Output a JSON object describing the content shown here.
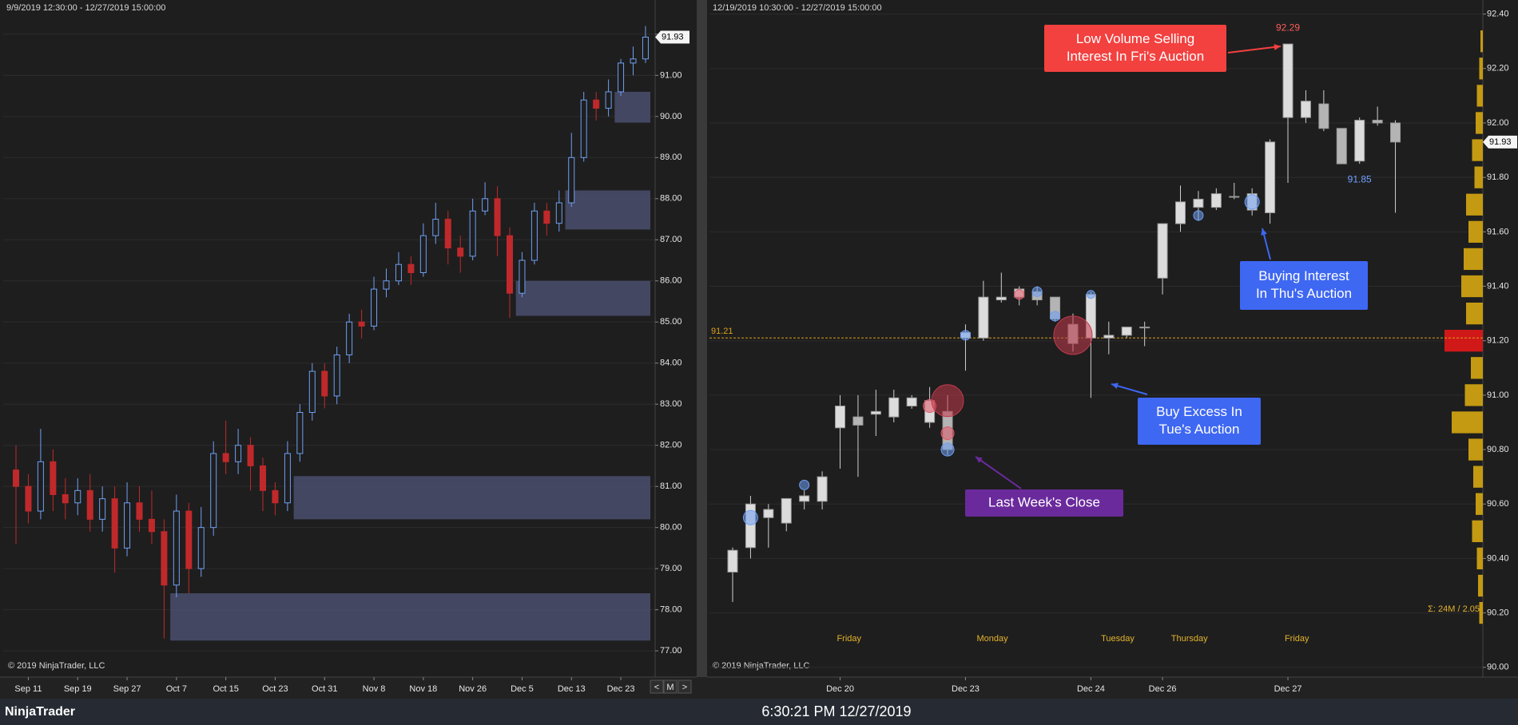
{
  "chart_data": [
    {
      "type": "candlestick",
      "header": "9/9/2019 12:30:00 - 12/27/2019 15:00:00",
      "copyright": "© 2019 NinjaTrader, LLC",
      "categories": [
        null,
        "Sep 11",
        null,
        null,
        null,
        "Sep 19",
        null,
        null,
        null,
        "Sep 27",
        null,
        null,
        null,
        "Oct 7",
        null,
        null,
        null,
        "Oct 15",
        null,
        null,
        null,
        "Oct 23",
        null,
        null,
        null,
        "Oct 31",
        null,
        null,
        null,
        "Nov 8",
        null,
        null,
        null,
        "Nov 18",
        null,
        null,
        null,
        "Nov 26",
        null,
        null,
        null,
        "Dec 5",
        null,
        null,
        null,
        "Dec 13",
        null,
        null,
        null,
        "Dec 23",
        null,
        null
      ],
      "open": [
        81.4,
        81.0,
        80.4,
        81.6,
        80.8,
        80.6,
        80.9,
        80.2,
        80.7,
        79.5,
        80.6,
        80.2,
        79.9,
        78.6,
        80.4,
        79.0,
        80.0,
        81.8,
        81.6,
        82.0,
        81.5,
        80.9,
        80.6,
        81.8,
        82.8,
        83.8,
        83.2,
        84.2,
        85.0,
        84.9,
        85.8,
        86.0,
        86.4,
        86.2,
        87.1,
        87.5,
        86.8,
        86.6,
        87.7,
        88.0,
        87.1,
        85.7,
        86.5,
        87.7,
        87.4,
        87.9,
        89.0,
        90.4,
        90.2,
        90.6,
        91.3,
        91.4
      ],
      "high": [
        82.0,
        81.3,
        82.4,
        81.9,
        81.2,
        81.2,
        81.3,
        81.0,
        81.0,
        81.1,
        81.0,
        80.9,
        80.2,
        80.8,
        80.6,
        80.5,
        82.1,
        82.6,
        82.4,
        82.2,
        81.7,
        81.1,
        82.1,
        83.0,
        84.0,
        84.0,
        84.4,
        85.2,
        85.3,
        86.1,
        86.3,
        86.7,
        86.6,
        87.4,
        87.9,
        87.7,
        87.1,
        88.0,
        88.4,
        88.3,
        87.3,
        86.7,
        87.9,
        87.9,
        88.2,
        89.6,
        90.6,
        90.6,
        90.9,
        91.4,
        91.7,
        92.2
      ],
      "low": [
        79.6,
        80.1,
        80.2,
        80.4,
        80.2,
        80.3,
        79.9,
        79.9,
        78.9,
        79.3,
        79.9,
        79.6,
        77.3,
        78.3,
        78.4,
        78.8,
        79.8,
        81.3,
        81.3,
        80.9,
        80.4,
        80.3,
        80.4,
        81.6,
        82.6,
        82.9,
        83.0,
        84.0,
        84.6,
        84.8,
        85.6,
        85.9,
        85.9,
        86.1,
        86.9,
        86.4,
        86.2,
        86.5,
        87.6,
        86.6,
        85.1,
        85.6,
        86.4,
        87.1,
        87.2,
        87.8,
        88.9,
        89.9,
        90.0,
        90.5,
        91.0,
        91.3
      ],
      "close": [
        81.0,
        80.4,
        81.6,
        80.8,
        80.6,
        80.9,
        80.2,
        80.7,
        79.5,
        80.6,
        80.2,
        79.9,
        78.6,
        80.4,
        79.0,
        80.0,
        81.8,
        81.6,
        82.0,
        81.5,
        80.9,
        80.6,
        81.8,
        82.8,
        83.8,
        83.2,
        84.2,
        85.0,
        84.9,
        85.8,
        86.0,
        86.4,
        86.2,
        87.1,
        87.5,
        86.8,
        86.6,
        87.7,
        88.0,
        87.1,
        85.7,
        86.5,
        87.7,
        87.4,
        87.9,
        89.0,
        90.4,
        90.2,
        90.6,
        91.3,
        91.4,
        91.93
      ],
      "up_color": "#6f9ff2",
      "down_color": "#c0292b",
      "hollow_up": true,
      "zones": [
        {
          "low": 77.25,
          "high": 78.4,
          "from": 13
        },
        {
          "low": 80.2,
          "high": 81.25,
          "from": 23
        },
        {
          "low": 85.15,
          "high": 86.0,
          "from": 41
        },
        {
          "low": 87.25,
          "high": 88.2,
          "from": 45
        },
        {
          "low": 89.85,
          "high": 90.6,
          "from": 49
        }
      ],
      "zone_color": "#4a4f6e",
      "ylim": [
        76.4,
        92.6
      ],
      "yticks": [
        {
          "value": 77,
          "label": "77.00"
        },
        {
          "value": 78,
          "label": "78.00"
        },
        {
          "value": 79,
          "label": "79.00"
        },
        {
          "value": 80,
          "label": "80.00"
        },
        {
          "value": 81,
          "label": "81.00"
        },
        {
          "value": 82,
          "label": "82.00"
        },
        {
          "value": 83,
          "label": "83.00"
        },
        {
          "value": 84,
          "label": "84.00"
        },
        {
          "value": 85,
          "label": "85.00"
        },
        {
          "value": 86,
          "label": "86.00"
        },
        {
          "value": 87,
          "label": "87.00"
        },
        {
          "value": 88,
          "label": "88.00"
        },
        {
          "value": 89,
          "label": "89.00"
        },
        {
          "value": 90,
          "label": "90.00"
        },
        {
          "value": 91,
          "label": "91.00"
        },
        {
          "value": 92,
          "label": "92.00"
        }
      ],
      "grid": true,
      "last_price": 91.93
    },
    {
      "type": "candlestick",
      "header": "12/19/2019 10:30:00 - 12/27/2019 15:00:00",
      "copyright": "© 2019 NinjaTrader, LLC",
      "categories": [
        null,
        null,
        null,
        null,
        null,
        null,
        "Dec 20",
        null,
        null,
        null,
        null,
        null,
        null,
        "Dec 23",
        null,
        null,
        null,
        null,
        null,
        null,
        "Dec 24",
        null,
        null,
        null,
        "Dec 26",
        null,
        null,
        null,
        null,
        null,
        null,
        "Dec 27",
        null,
        null,
        null,
        null,
        null,
        null
      ],
      "open": [
        90.35,
        90.44,
        90.55,
        90.53,
        90.61,
        90.61,
        90.88,
        90.92,
        90.93,
        90.92,
        90.96,
        90.9,
        90.94,
        91.21,
        91.21,
        91.35,
        91.36,
        91.38,
        91.36,
        91.26,
        91.21,
        91.21,
        91.22,
        91.25,
        91.43,
        91.63,
        91.69,
        91.69,
        91.73,
        91.68,
        91.67,
        92.02,
        92.02,
        92.07,
        91.98,
        91.86,
        92.01,
        92.0
      ],
      "high": [
        90.44,
        90.63,
        90.6,
        90.62,
        90.65,
        90.72,
        91.0,
        91.0,
        91.02,
        91.02,
        91.0,
        91.03,
        91.0,
        91.26,
        91.42,
        91.45,
        91.4,
        91.4,
        91.36,
        91.3,
        91.38,
        91.27,
        91.25,
        91.27,
        91.63,
        91.77,
        91.75,
        91.76,
        91.78,
        91.76,
        91.94,
        92.29,
        92.12,
        92.12,
        91.98,
        92.02,
        92.06,
        92.01
      ],
      "low": [
        90.24,
        90.4,
        90.44,
        90.5,
        90.58,
        90.58,
        90.73,
        90.7,
        90.85,
        90.9,
        90.95,
        90.88,
        90.78,
        91.09,
        91.2,
        91.34,
        91.33,
        91.33,
        91.27,
        91.16,
        90.99,
        91.15,
        91.21,
        91.18,
        91.37,
        91.6,
        91.64,
        91.68,
        91.72,
        91.66,
        91.63,
        91.78,
        92.0,
        91.97,
        91.85,
        91.85,
        91.99,
        91.67
      ],
      "close": [
        90.43,
        90.6,
        90.58,
        90.62,
        90.63,
        90.7,
        90.96,
        90.89,
        90.94,
        90.99,
        90.99,
        90.98,
        90.8,
        91.23,
        91.36,
        91.36,
        91.39,
        91.35,
        91.28,
        91.19,
        91.37,
        91.22,
        91.25,
        91.25,
        91.63,
        91.71,
        91.72,
        91.74,
        91.73,
        91.74,
        91.93,
        92.29,
        92.08,
        91.98,
        91.85,
        92.01,
        92.0,
        91.93
      ],
      "up_color": "#dcdcdc",
      "down_color": "#b4b4b4",
      "hollow_up": false,
      "ylim": [
        89.97,
        92.44
      ],
      "yticks": [
        {
          "value": 90.0,
          "label": "90.00"
        },
        {
          "value": 90.2,
          "label": "90.20"
        },
        {
          "value": 90.4,
          "label": "90.40"
        },
        {
          "value": 90.6,
          "label": "90.60"
        },
        {
          "value": 90.8,
          "label": "90.80"
        },
        {
          "value": 91.0,
          "label": "91.00"
        },
        {
          "value": 91.2,
          "label": "91.20"
        },
        {
          "value": 91.4,
          "label": "91.40"
        },
        {
          "value": 91.6,
          "label": "91.60"
        },
        {
          "value": 91.8,
          "label": "91.80"
        },
        {
          "value": 92.0,
          "label": "92.00"
        },
        {
          "value": 92.2,
          "label": "92.20"
        },
        {
          "value": 92.4,
          "label": "92.40"
        }
      ],
      "grid": true,
      "last_price": 91.93,
      "price_line": {
        "value": 91.21,
        "color": "#d9a21b"
      },
      "price_labels": [
        {
          "value": 92.29,
          "index": 31,
          "color": "#ff5c5c"
        },
        {
          "value": 91.85,
          "index": 35,
          "color": "#6fa0ff"
        }
      ],
      "session_labels": {
        "labels": [
          "Friday",
          "Monday",
          "Tuesday",
          "Thursday",
          "Friday"
        ],
        "index": [
          6,
          14,
          21,
          25,
          31
        ],
        "color": "#e3b32c"
      },
      "bubbles": [
        {
          "index": 1,
          "price": 90.55,
          "size": 9,
          "color": "#6f9ff2"
        },
        {
          "index": 4,
          "price": 90.67,
          "size": 6,
          "color": "#6f9ff2"
        },
        {
          "index": 11,
          "price": 90.96,
          "size": 8,
          "color": "#e05a6a"
        },
        {
          "index": 12,
          "price": 90.98,
          "size": 20,
          "color": "#c23a4c"
        },
        {
          "index": 12,
          "price": 90.86,
          "size": 8,
          "color": "#e05a6a"
        },
        {
          "index": 12,
          "price": 90.8,
          "size": 8,
          "color": "#6f9ff2"
        },
        {
          "index": 13,
          "price": 91.22,
          "size": 6,
          "color": "#6f9ff2"
        },
        {
          "index": 16,
          "price": 91.37,
          "size": 6,
          "color": "#e05a6a"
        },
        {
          "index": 17,
          "price": 91.38,
          "size": 6,
          "color": "#6f9ff2"
        },
        {
          "index": 18,
          "price": 91.29,
          "size": 6,
          "color": "#6f9ff2"
        },
        {
          "index": 19,
          "price": 91.22,
          "size": 24,
          "color": "#c23a4c"
        },
        {
          "index": 20,
          "price": 91.37,
          "size": 5,
          "color": "#6f9ff2"
        },
        {
          "index": 26,
          "price": 91.66,
          "size": 6,
          "color": "#6f9ff2"
        },
        {
          "index": 29,
          "price": 91.71,
          "size": 9,
          "color": "#6f9ff2"
        }
      ],
      "volume_profile": {
        "prices": [
          90.2,
          90.3,
          90.4,
          90.5,
          90.6,
          90.7,
          90.8,
          90.9,
          91.0,
          91.1,
          91.2,
          91.3,
          91.4,
          91.5,
          91.6,
          91.7,
          91.8,
          91.9,
          92.0,
          92.1,
          92.2,
          92.3
        ],
        "values": [
          0.3,
          0.4,
          0.5,
          0.9,
          0.6,
          0.8,
          1.2,
          2.6,
          1.5,
          1.0,
          3.2,
          1.4,
          1.8,
          1.6,
          1.2,
          1.4,
          0.7,
          0.9,
          0.6,
          0.5,
          0.3,
          0.2
        ],
        "color": "#c49a12",
        "max_color": "#d01818"
      },
      "profile_summary": "Σ: 24M / 2.05",
      "annotations": [
        {
          "lines": [
            "Low Volume Selling",
            "Interest In Fri's Auction"
          ],
          "color": "#f2413f"
        },
        {
          "lines": [
            "Buying Interest",
            "In Thu's Auction"
          ],
          "color": "#3e67f2"
        },
        {
          "lines": [
            "Buy Excess In",
            "Tue's Auction"
          ],
          "color": "#3e67f2"
        },
        {
          "lines": [
            "Last Week's Close"
          ],
          "color": "#6a2a9c"
        }
      ]
    }
  ],
  "nav": [
    "<",
    "M",
    ">"
  ],
  "footer": {
    "brand": "NinjaTrader",
    "clock": "6:30:21 PM 12/27/2019"
  }
}
